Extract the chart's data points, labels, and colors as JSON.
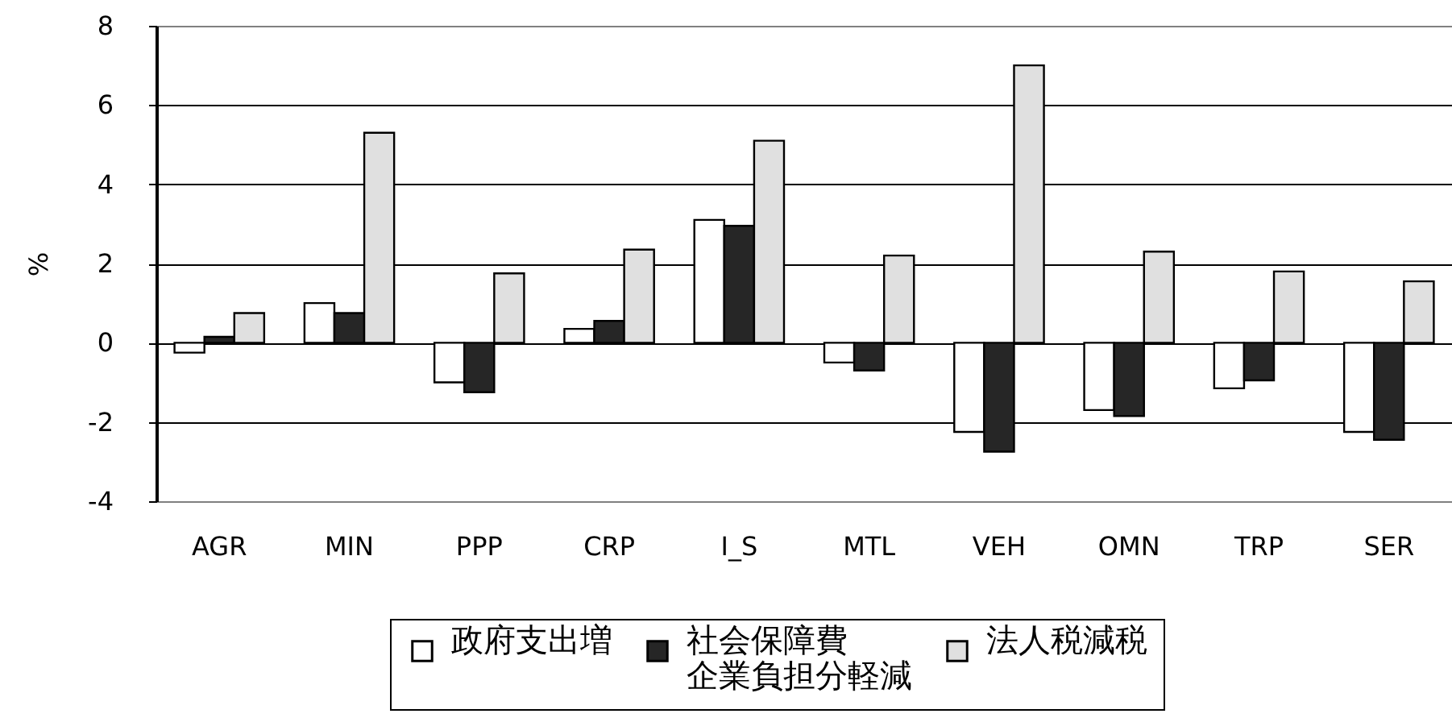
{
  "chart_data": {
    "type": "bar",
    "ylabel": "%",
    "categories": [
      "AGR",
      "MIN",
      "PPP",
      "CRP",
      "I_S",
      "MTL",
      "VEH",
      "OMN",
      "TRP",
      "SER"
    ],
    "series": [
      {
        "name": "政府支出増",
        "color": "#ffffff",
        "values": [
          -0.25,
          1.0,
          -1.0,
          0.35,
          3.1,
          -0.5,
          -2.25,
          -1.7,
          -1.15,
          -2.25
        ]
      },
      {
        "name": "社会保障費企業負担分軽減",
        "color": "#262626",
        "values": [
          0.15,
          0.75,
          -1.25,
          0.55,
          2.95,
          -0.7,
          -2.75,
          -1.85,
          -0.95,
          -2.45
        ]
      },
      {
        "name": "法人税減税",
        "color": "#e0e0e0",
        "values": [
          0.75,
          5.3,
          1.75,
          2.35,
          5.1,
          2.2,
          7.0,
          2.3,
          1.8,
          1.55
        ]
      }
    ],
    "ylim": [
      -4,
      8
    ],
    "yticks": [
      -4,
      -2,
      0,
      2,
      4,
      6,
      8
    ],
    "grid": "y",
    "legend": "bottom"
  }
}
